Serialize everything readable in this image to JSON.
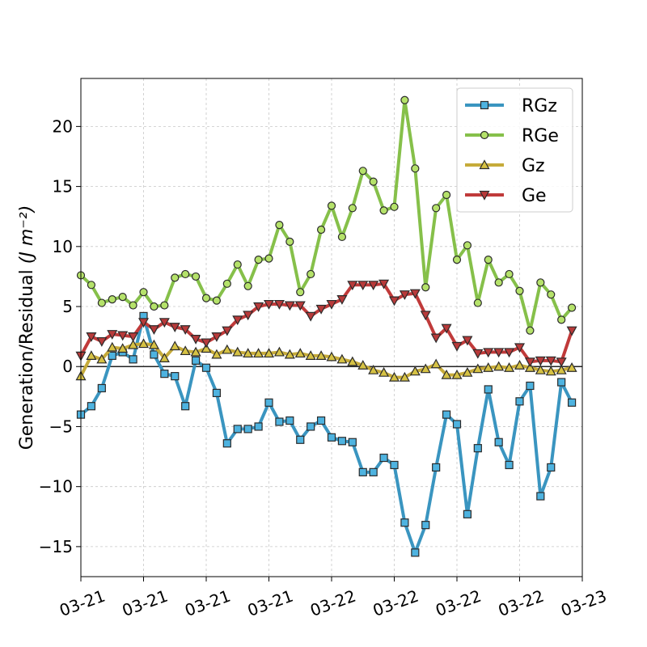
{
  "chart_data": {
    "type": "line",
    "title": "",
    "xlabel": "",
    "ylabel": "Generation/Residual",
    "ylabel_unit": "(J m⁻²)",
    "x_tick_labels": [
      "03-21",
      "03-21",
      "03-21",
      "03-21",
      "03-22",
      "03-22",
      "03-22",
      "03-22",
      "03-23"
    ],
    "x_tick_positions": [
      0,
      6,
      12,
      18,
      24,
      30,
      36,
      42,
      48
    ],
    "xlim": [
      0,
      48
    ],
    "ylim": [
      -17.5,
      24.0
    ],
    "y_ticks": [
      -15,
      -10,
      -5,
      0,
      5,
      10,
      15,
      20
    ],
    "y_tick_labels": [
      "−15",
      "−10",
      "−5",
      "0",
      "5",
      "10",
      "15",
      "20"
    ],
    "grid": true,
    "zero_line": true,
    "legend_position": "top-right",
    "series": [
      {
        "name": "RGz",
        "color": "#3a95c0",
        "marker": "square",
        "marker_color": "#4eb3e0",
        "values": [
          -4.0,
          -3.3,
          -1.8,
          0.9,
          1.2,
          0.6,
          4.2,
          1.0,
          -0.6,
          -0.8,
          -3.3,
          0.5,
          -0.1,
          -2.2,
          -6.4,
          -5.2,
          -5.2,
          -5.0,
          -3.0,
          -4.6,
          -4.5,
          -6.1,
          -5.0,
          -4.5,
          -5.9,
          -6.2,
          -6.3,
          -8.8,
          -8.8,
          -7.6,
          -8.2,
          -13.0,
          -15.5,
          -13.2,
          -8.4,
          -4.0,
          -4.8,
          -12.3,
          -6.8,
          -1.9,
          -6.3,
          -8.2,
          -2.9,
          -1.6,
          -10.8,
          -8.4,
          -1.3,
          -3.0
        ]
      },
      {
        "name": "RGe",
        "color": "#86c04a",
        "marker": "circle",
        "marker_color": "#b5e26a",
        "values": [
          7.6,
          6.8,
          5.3,
          5.6,
          5.8,
          5.1,
          6.2,
          5.0,
          5.1,
          7.4,
          7.7,
          7.5,
          5.7,
          5.5,
          6.9,
          8.5,
          6.7,
          8.9,
          9.0,
          11.8,
          10.4,
          6.2,
          7.7,
          11.4,
          13.4,
          10.8,
          13.2,
          16.3,
          15.4,
          13.0,
          13.3,
          22.2,
          16.5,
          6.6,
          13.2,
          14.3,
          8.9,
          10.1,
          5.3,
          8.9,
          7.0,
          7.7,
          6.3,
          3.0,
          7.0,
          6.0,
          3.9,
          4.9
        ]
      },
      {
        "name": "Gz",
        "color": "#c6ab3a",
        "marker": "triangle-up",
        "marker_color": "#d6c244",
        "values": [
          -0.8,
          0.9,
          0.6,
          1.6,
          1.5,
          1.8,
          1.9,
          1.8,
          0.7,
          1.7,
          1.3,
          1.2,
          1.5,
          1.0,
          1.4,
          1.2,
          1.1,
          1.1,
          1.1,
          1.2,
          1.0,
          1.1,
          0.9,
          0.9,
          0.8,
          0.6,
          0.4,
          0.1,
          -0.3,
          -0.5,
          -0.9,
          -0.9,
          -0.4,
          -0.2,
          0.2,
          -0.7,
          -0.7,
          -0.5,
          -0.2,
          -0.1,
          0.0,
          -0.1,
          0.1,
          -0.1,
          -0.3,
          -0.4,
          -0.3,
          -0.1
        ]
      },
      {
        "name": "Ge",
        "color": "#c03a3a",
        "marker": "triangle-down",
        "marker_color": "#b83a3a",
        "values": [
          0.9,
          2.5,
          2.1,
          2.7,
          2.6,
          2.5,
          3.7,
          3.1,
          3.7,
          3.3,
          3.1,
          2.3,
          2.0,
          2.5,
          3.0,
          3.9,
          4.3,
          5.0,
          5.2,
          5.2,
          5.1,
          5.1,
          4.2,
          4.8,
          5.2,
          5.6,
          6.8,
          6.8,
          6.8,
          6.9,
          5.5,
          6.0,
          6.1,
          4.3,
          2.4,
          3.2,
          1.7,
          2.2,
          1.1,
          1.2,
          1.2,
          1.2,
          1.6,
          0.4,
          0.5,
          0.5,
          0.4,
          3.0
        ]
      }
    ]
  }
}
